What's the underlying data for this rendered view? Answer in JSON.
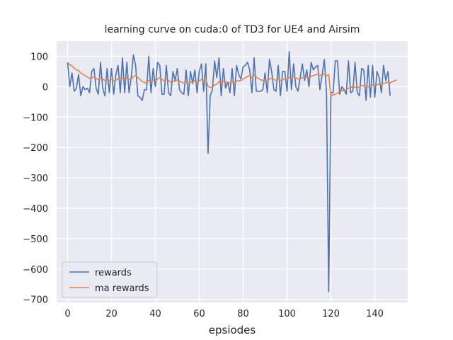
{
  "chart_data": {
    "type": "line",
    "title": "learning curve on cuda:0 of TD3 for UE4 and Airsim",
    "xlabel": "epsiodes",
    "ylabel": "",
    "xlim": [
      -5,
      155
    ],
    "ylim": [
      -710,
      150
    ],
    "xticks": [
      0,
      20,
      40,
      60,
      80,
      100,
      120,
      140
    ],
    "yticks": [
      100,
      0,
      -100,
      -200,
      -300,
      -400,
      -500,
      -600,
      -700
    ],
    "ytick_labels": [
      "100",
      "0",
      "−100",
      "−200",
      "−300",
      "−400",
      "−500",
      "−600",
      "−700"
    ],
    "grid": true,
    "legend_position": "lower-left",
    "series": [
      {
        "name": "rewards",
        "color": "#4c72b0",
        "values": [
          80,
          0,
          45,
          -15,
          -5,
          40,
          -30,
          0,
          -10,
          -5,
          -20,
          50,
          60,
          -5,
          -25,
          80,
          -5,
          -30,
          60,
          -20,
          60,
          -25,
          40,
          70,
          -20,
          95,
          -20,
          80,
          -20,
          30,
          105,
          70,
          -30,
          -35,
          -45,
          -10,
          -10,
          100,
          -20,
          60,
          0,
          80,
          70,
          -25,
          -25,
          70,
          -20,
          -30,
          50,
          20,
          60,
          -10,
          -20,
          -25,
          55,
          -30,
          50,
          10,
          55,
          -20,
          50,
          75,
          -15,
          75,
          -220,
          -30,
          -10,
          85,
          30,
          95,
          -30,
          60,
          -5,
          15,
          -20,
          60,
          -30,
          70,
          40,
          25,
          65,
          70,
          80,
          55,
          -20,
          95,
          -15,
          -15,
          -15,
          -10,
          45,
          -20,
          90,
          50,
          -10,
          -15,
          70,
          -30,
          50,
          50,
          -15,
          115,
          -10,
          75,
          0,
          -15,
          30,
          75,
          20,
          55,
          0,
          80,
          55,
          65,
          70,
          -10,
          40,
          90,
          -20,
          -675,
          -20,
          -20,
          85,
          85,
          -25,
          0,
          -10,
          -25,
          85,
          -20,
          -15,
          80,
          -20,
          -30,
          60,
          55,
          -45,
          70,
          -35,
          70,
          -35,
          50,
          30,
          -20,
          70,
          20,
          50,
          -30
        ]
      },
      {
        "name": "ma rewards",
        "color": "#dd8452",
        "values": [
          80,
          72,
          69,
          61,
          55,
          53,
          45,
          41,
          36,
          32,
          27,
          29,
          32,
          28,
          23,
          29,
          26,
          20,
          24,
          20,
          24,
          19,
          21,
          26,
          21,
          28,
          24,
          29,
          24,
          25,
          33,
          37,
          30,
          24,
          17,
          14,
          12,
          21,
          17,
          21,
          19,
          25,
          30,
          24,
          19,
          24,
          20,
          15,
          18,
          18,
          22,
          19,
          15,
          11,
          15,
          11,
          15,
          15,
          19,
          15,
          19,
          24,
          20,
          25,
          1,
          -2,
          -3,
          6,
          8,
          17,
          12,
          17,
          15,
          15,
          12,
          17,
          12,
          18,
          20,
          20,
          25,
          29,
          34,
          36,
          31,
          37,
          32,
          27,
          23,
          20,
          22,
          18,
          25,
          28,
          24,
          20,
          25,
          20,
          23,
          26,
          22,
          31,
          27,
          32,
          29,
          25,
          25,
          30,
          29,
          32,
          29,
          34,
          36,
          39,
          42,
          37,
          37,
          42,
          36,
          40,
          -32,
          -27,
          -25,
          -22,
          -15,
          -13,
          -13,
          -11,
          -5,
          -4,
          1,
          -2,
          -2,
          -2,
          4,
          3,
          -2,
          0,
          0,
          6,
          2,
          6,
          8,
          5,
          11,
          12,
          16,
          12,
          17,
          19,
          22
        ]
      }
    ]
  }
}
